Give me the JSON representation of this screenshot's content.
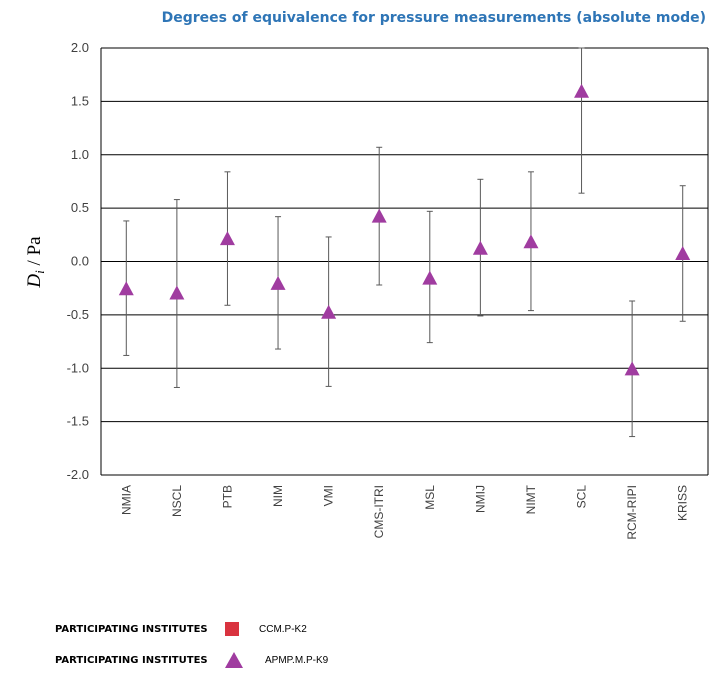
{
  "chart_data": {
    "type": "scatter",
    "title": "Degrees of equivalence for pressure measurements (absolute mode)",
    "ylabel_var": "D",
    "ylabel_sub": "i",
    "ylabel_unit": " / Pa",
    "xlabel": "",
    "ylim": [
      -2.0,
      2.0
    ],
    "yticks": [
      "2.0",
      "1.5",
      "1.0",
      "0.5",
      "0.0",
      "-0.5",
      "-1.0",
      "-1.5",
      "-2.0"
    ],
    "grid": true,
    "categories": [
      "NMIA",
      "NSCL",
      "PTB",
      "NIM",
      "VMI",
      "CMS-ITRI",
      "MSL",
      "NMIJ",
      "NIMT",
      "SCL",
      "RCM-RIPI",
      "KRISS"
    ],
    "series": [
      {
        "name": "APMP.M.P-K9",
        "marker": "triangle",
        "color": "#a03ca0",
        "values": [
          -0.26,
          -0.3,
          0.21,
          -0.21,
          -0.48,
          0.42,
          -0.16,
          0.12,
          0.18,
          1.59,
          -1.01,
          0.07
        ],
        "upper": [
          0.38,
          0.58,
          0.84,
          0.42,
          0.23,
          1.07,
          0.47,
          0.77,
          0.84,
          2.0,
          -0.37,
          0.71
        ],
        "lower": [
          -0.88,
          -1.18,
          -0.41,
          -0.82,
          -1.17,
          -0.22,
          -0.76,
          -0.51,
          -0.46,
          0.64,
          -1.64,
          -0.56
        ]
      }
    ],
    "legend": [
      {
        "heading": "PARTICIPATING INSTITUTES",
        "name": "CCM.P-K2",
        "marker": "square",
        "color": "#d9333f"
      },
      {
        "heading": "PARTICIPATING INSTITUTES",
        "name": "APMP.M.P-K9",
        "marker": "triangle",
        "color": "#a03ca0"
      }
    ],
    "legend_position": "bottom-left"
  }
}
